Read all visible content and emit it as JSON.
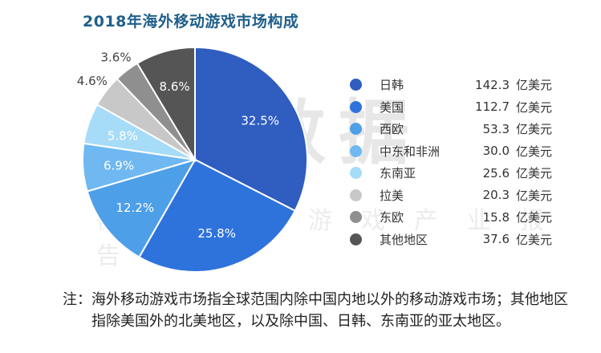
{
  "chart_title": "2018年海外移动游戏市场构成",
  "watermark_main": "伽马数据",
  "watermark_sub": "微信号：游戏产业报告",
  "chart_data": {
    "type": "pie",
    "title": "2018年海外移动游戏市场构成",
    "unit": "亿美元",
    "slices": [
      {
        "label": "日韩",
        "value": 142.3,
        "value_text": "142.3",
        "percent": 32.5,
        "percent_text": "32.5%",
        "color": "#2f5dc0"
      },
      {
        "label": "美国",
        "value": 112.7,
        "value_text": "112.7",
        "percent": 25.8,
        "percent_text": "25.8%",
        "color": "#2e73dc"
      },
      {
        "label": "西欧",
        "value": 53.3,
        "value_text": "53.3",
        "percent": 12.2,
        "percent_text": "12.2%",
        "color": "#4d9fe8"
      },
      {
        "label": "中东和非洲",
        "value": 30.0,
        "value_text": "30.0",
        "percent": 6.9,
        "percent_text": "6.9%",
        "color": "#6fb8f2"
      },
      {
        "label": "东南亚",
        "value": 25.6,
        "value_text": "25.6",
        "percent": 5.8,
        "percent_text": "5.8%",
        "color": "#a6dcf8"
      },
      {
        "label": "拉美",
        "value": 20.3,
        "value_text": "20.3",
        "percent": 4.6,
        "percent_text": "4.6%",
        "color": "#c8c8c8"
      },
      {
        "label": "东欧",
        "value": 15.8,
        "value_text": "15.8",
        "percent": 3.6,
        "percent_text": "3.6%",
        "color": "#8f8f8f"
      },
      {
        "label": "其他地区",
        "value": 37.6,
        "value_text": "37.6",
        "percent": 8.6,
        "percent_text": "8.6%",
        "color": "#555555"
      }
    ],
    "legend_position": "right"
  },
  "note": {
    "label": "注：",
    "text": "海外移动游戏市场指全球范围内除中国内地以外的移动游戏市场；其他地区指除美国外的北美地区，以及除中国、日韩、东南亚的亚太地区。"
  }
}
